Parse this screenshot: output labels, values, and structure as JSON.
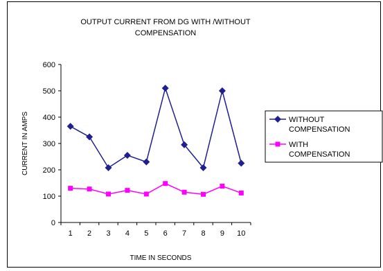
{
  "chart_data": {
    "type": "line",
    "title_lines": [
      "OUTPUT CURRENT FROM DG WITH /WITHOUT",
      "COMPENSATION"
    ],
    "xlabel": "TIME IN SECONDS",
    "ylabel": "CURRENT IN AMPS",
    "x": [
      1,
      2,
      3,
      4,
      5,
      6,
      7,
      8,
      9,
      10
    ],
    "ylim": [
      0,
      600
    ],
    "yticks": [
      0,
      100,
      200,
      300,
      400,
      500,
      600
    ],
    "grid": false,
    "legend_position": "right",
    "series": [
      {
        "name_lines": [
          "WITHOUT",
          "COMPENSATION"
        ],
        "values": [
          365,
          325,
          208,
          255,
          230,
          510,
          295,
          208,
          500,
          225
        ],
        "color": "#1f1f8f",
        "marker": "diamond"
      },
      {
        "name_lines": [
          "WITH",
          "COMPENSATION"
        ],
        "values": [
          130,
          127,
          108,
          122,
          108,
          148,
          115,
          107,
          138,
          112
        ],
        "color": "#ff00ff",
        "marker": "square"
      }
    ]
  }
}
